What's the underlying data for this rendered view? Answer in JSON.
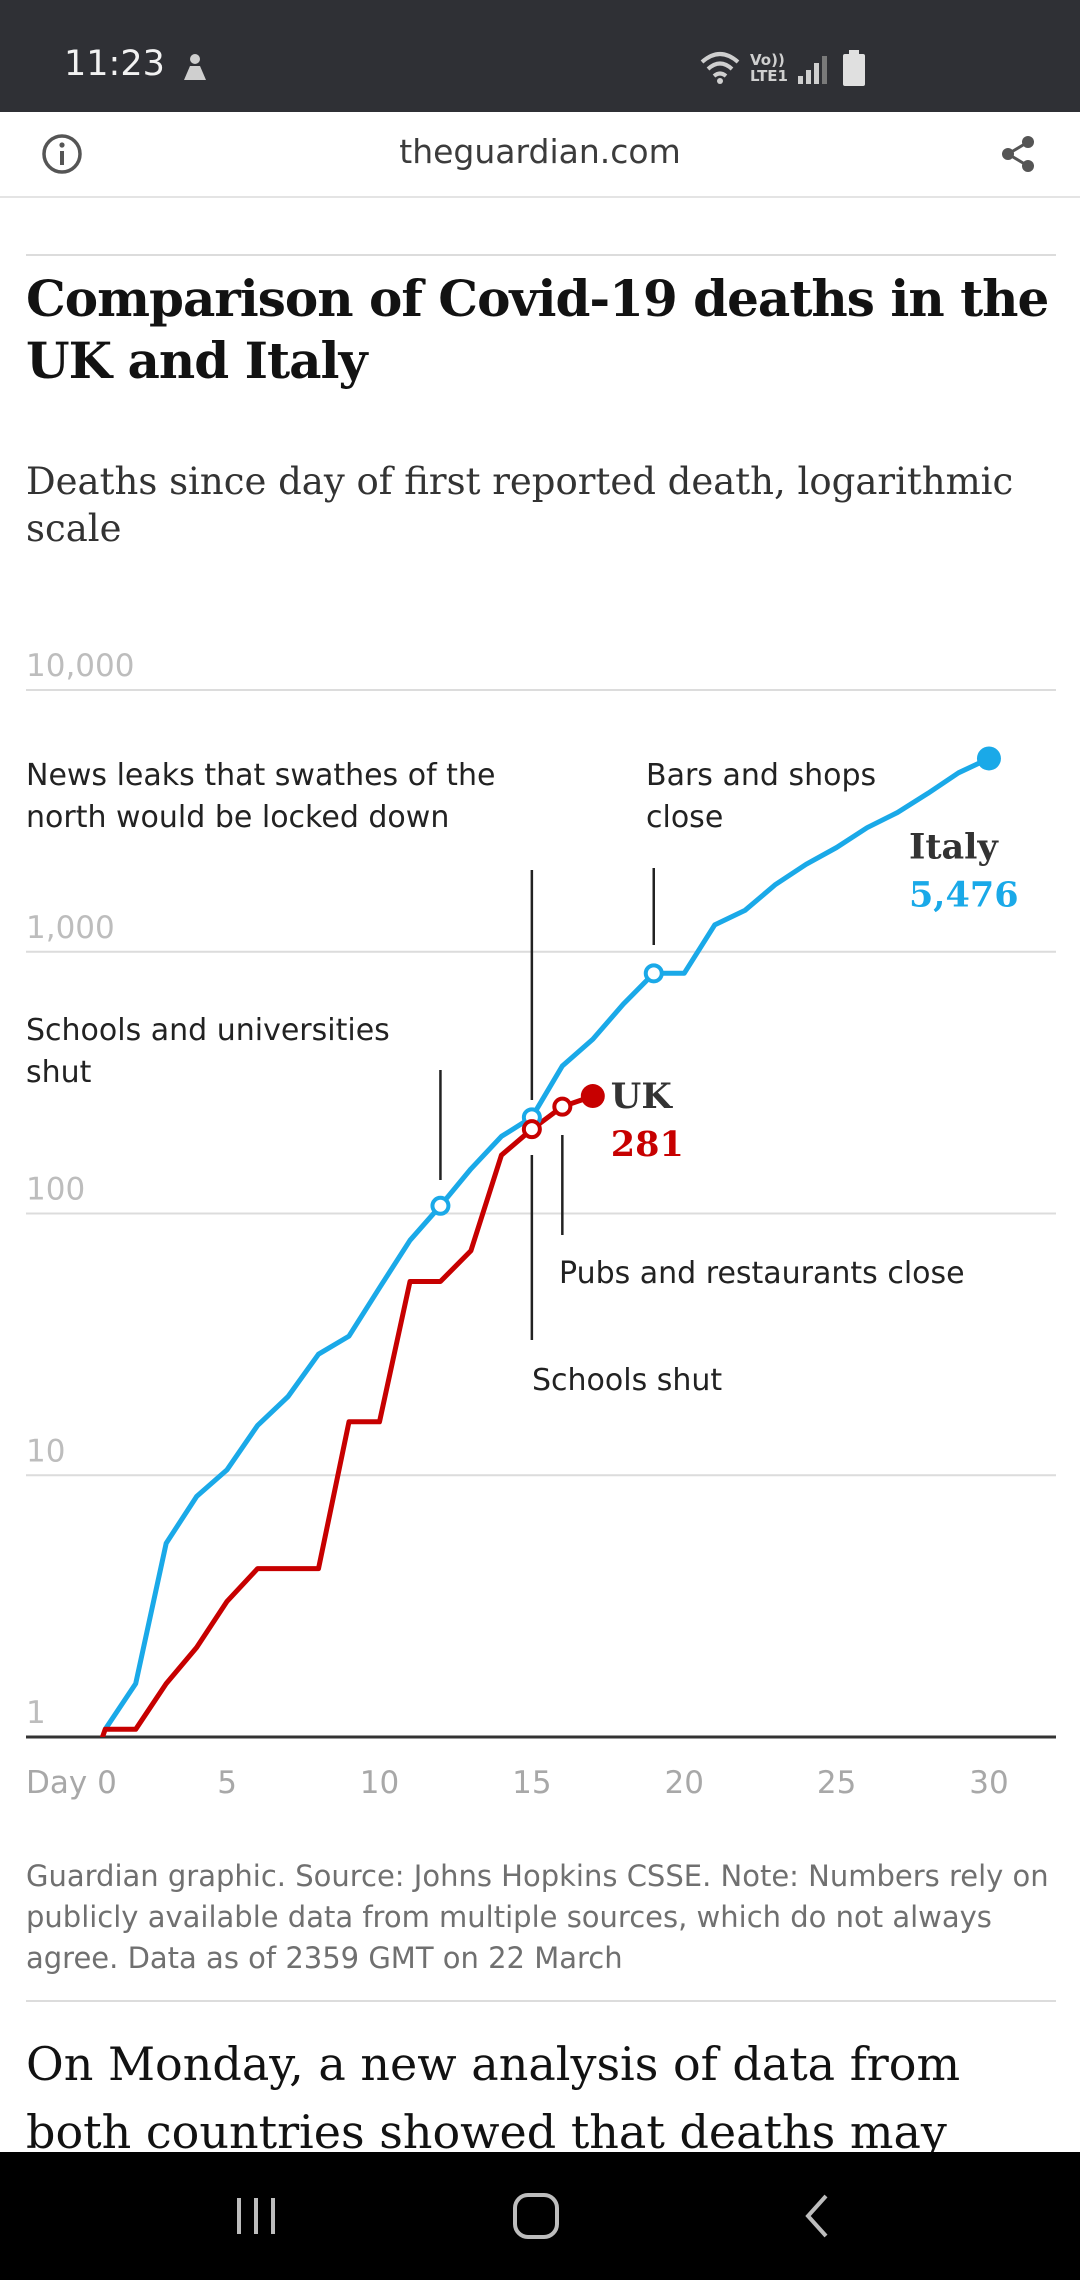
{
  "status_bar": {
    "time": "11:23",
    "network_label": "Vo)) LTE1"
  },
  "browser": {
    "url": "theguardian.com"
  },
  "chart_data": {
    "type": "line",
    "title": "Comparison of Covid-19 deaths in the UK and Italy",
    "subtitle": "Deaths since day of first reported death, logarithmic scale",
    "x_tick_labels": [
      "Day 0",
      "5",
      "10",
      "15",
      "20",
      "25",
      "30"
    ],
    "x_ticks": [
      0,
      5,
      10,
      15,
      20,
      25,
      30
    ],
    "y_tick_labels": [
      "1",
      "10",
      "100",
      "1,000",
      "10,000"
    ],
    "y_ticks": [
      1,
      10,
      100,
      1000,
      10000
    ],
    "xlim": [
      -1.6,
      32.2
    ],
    "ylim": [
      1,
      10000
    ],
    "yscale": "log",
    "series": [
      {
        "name": "Italy",
        "color": "#1aa9e8",
        "end_label": "5,476",
        "x": [
          1,
          2,
          3,
          4,
          5,
          6,
          7,
          8,
          9,
          10,
          11,
          12,
          13,
          14,
          15,
          16,
          17,
          18,
          19,
          20,
          21,
          22,
          23,
          24,
          25,
          26,
          27,
          28,
          29,
          30
        ],
        "y": [
          1.07,
          1.6,
          5.5,
          8.3,
          10.5,
          15.5,
          20,
          29,
          34,
          52,
          79,
          107,
          148,
          197,
          233,
          366,
          463,
          631,
          827,
          827,
          1266,
          1441,
          1809,
          2158,
          2503,
          2978,
          3405,
          4032,
          4825,
          5476
        ]
      },
      {
        "name": "UK",
        "color": "#c70000",
        "end_label": "281",
        "x": [
          0,
          1,
          2,
          3,
          4,
          5,
          6,
          7,
          8,
          9,
          10,
          11,
          12,
          13,
          14,
          15,
          16,
          17
        ],
        "y": [
          0.5,
          1.07,
          1.07,
          1.6,
          2.2,
          3.3,
          4.4,
          4.4,
          4.4,
          16,
          16,
          55,
          55,
          72,
          167,
          210,
          256,
          281
        ]
      }
    ],
    "annotations": [
      {
        "text": "Schools and universities shut",
        "series": "Italy",
        "x": 12
      },
      {
        "text": "News leaks that swathes of the north would be locked down",
        "series": "Italy",
        "x": 15
      },
      {
        "text": "Bars and shops close",
        "series": "Italy",
        "x": 19
      },
      {
        "text": "Schools shut",
        "series": "UK",
        "x": 15
      },
      {
        "text": "Pubs and restaurants close",
        "series": "UK",
        "x": 16
      }
    ],
    "grid": true,
    "legend": "direct labels at line ends"
  },
  "note": "Guardian graphic. Source: Johns Hopkins CSSE. Note: Numbers rely on publicly available data from multiple sources, which do not always agree. Data as of 2359 GMT on 22 March",
  "article": {
    "paragraph": "On Monday, a new analysis of data from both countries showed that deaths may indeed be"
  },
  "icons": [
    "info-icon",
    "share-icon",
    "recent-apps-icon",
    "home-icon",
    "back-icon"
  ]
}
